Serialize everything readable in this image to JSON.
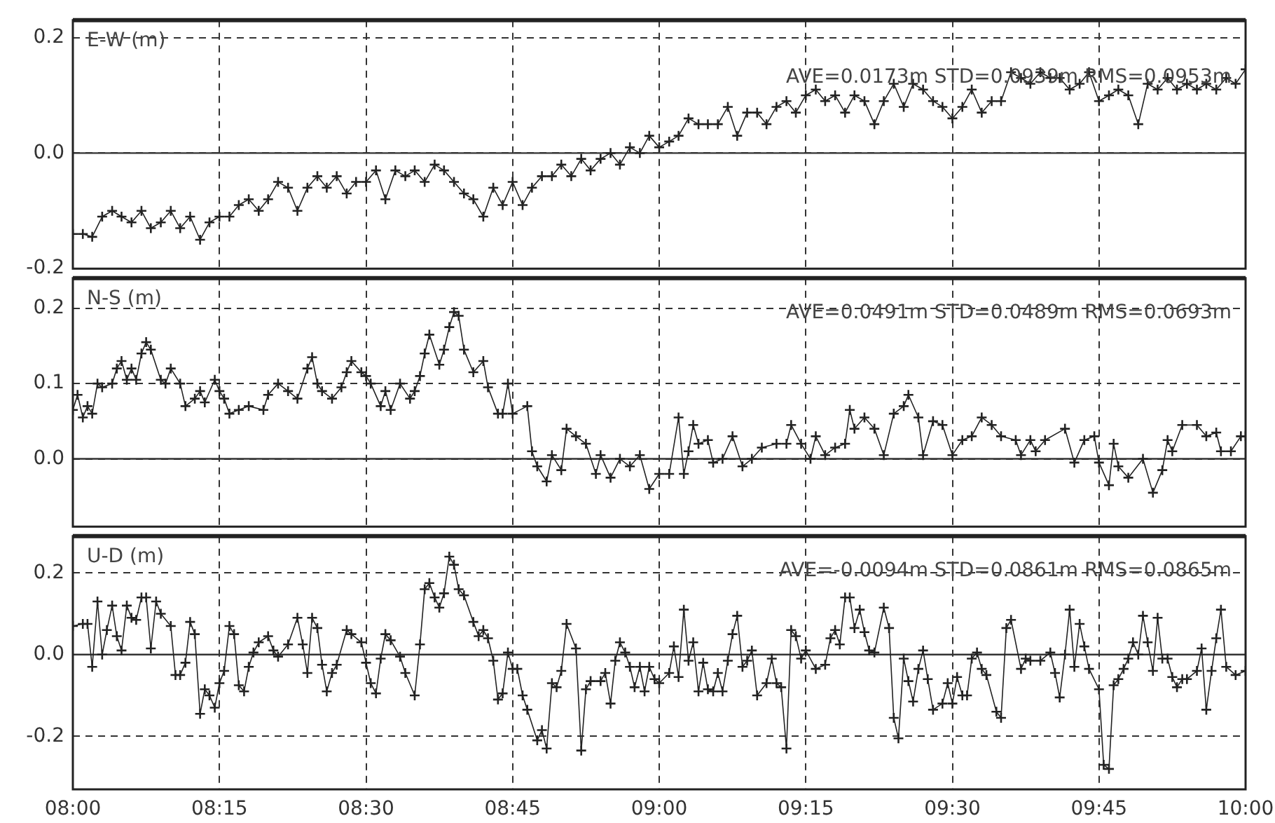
{
  "chart_data": [
    {
      "type": "line",
      "title": "E-W (m)",
      "annotations": [
        "AVE=0.0173m STD=0.0939m RMS=0.0953m"
      ],
      "marker": "cross",
      "grid": true,
      "tick_labels": "y",
      "xlim": [
        8,
        10
      ],
      "xticks": [
        {
          "value": 8,
          "label": null
        },
        {
          "value": 8.25,
          "label": null
        },
        {
          "value": 8.5,
          "label": null
        },
        {
          "value": 8.75,
          "label": null
        },
        {
          "value": 9,
          "label": null
        },
        {
          "value": 9.25,
          "label": null
        },
        {
          "value": 9.5,
          "label": null
        },
        {
          "value": 9.75,
          "label": null
        },
        {
          "value": 10,
          "label": null
        }
      ],
      "ylim": [
        -0.2,
        0.23
      ],
      "yticks": [
        {
          "value": -0.2,
          "label": "-0.2"
        },
        {
          "value": 0,
          "label": "0.0"
        },
        {
          "value": 0.2,
          "label": "0.2"
        }
      ],
      "ref_lines": [
        {
          "axis": "y",
          "value": 0,
          "color": "#333333",
          "line_style": "solid"
        }
      ],
      "series": [
        {
          "color": "#222222",
          "x": [
            8,
            8.017,
            8.033,
            8.05,
            8.067,
            8.083,
            8.1,
            8.117,
            8.133,
            8.15,
            8.167,
            8.183,
            8.2,
            8.217,
            8.233,
            8.25,
            8.267,
            8.283,
            8.3,
            8.317,
            8.333,
            8.35,
            8.367,
            8.383,
            8.4,
            8.417,
            8.433,
            8.45,
            8.467,
            8.483,
            8.5,
            8.517,
            8.533,
            8.55,
            8.567,
            8.583,
            8.6,
            8.617,
            8.633,
            8.65,
            8.667,
            8.683,
            8.7,
            8.717,
            8.733,
            8.75,
            8.767,
            8.783,
            8.8,
            8.817,
            8.833,
            8.85,
            8.867,
            8.883,
            8.9,
            8.917,
            8.933,
            8.95,
            8.967,
            8.983,
            9,
            9.017,
            9.033,
            9.05,
            9.067,
            9.083,
            9.1,
            9.117,
            9.133,
            9.15,
            9.167,
            9.183,
            9.2,
            9.217,
            9.233,
            9.25,
            9.267,
            9.283,
            9.3,
            9.317,
            9.333,
            9.35,
            9.367,
            9.383,
            9.4,
            9.417,
            9.433,
            9.45,
            9.467,
            9.483,
            9.5,
            9.517,
            9.533,
            9.55,
            9.567,
            9.583,
            9.6,
            9.617,
            9.633,
            9.65,
            9.667,
            9.683,
            9.7,
            9.717,
            9.733,
            9.75,
            9.767,
            9.783,
            9.8,
            9.817,
            9.833,
            9.85,
            9.867,
            9.883,
            9.9,
            9.917,
            9.933,
            9.95,
            9.967,
            9.983,
            10
          ],
          "values": [
            -0.14,
            -0.14,
            -0.145,
            -0.11,
            -0.1,
            -0.11,
            -0.12,
            -0.1,
            -0.13,
            -0.12,
            -0.1,
            -0.13,
            -0.11,
            -0.15,
            -0.12,
            -0.11,
            -0.11,
            -0.09,
            -0.08,
            -0.1,
            -0.08,
            -0.05,
            -0.06,
            -0.1,
            -0.06,
            -0.04,
            -0.06,
            -0.04,
            -0.07,
            -0.05,
            -0.05,
            -0.03,
            -0.08,
            -0.03,
            -0.04,
            -0.03,
            -0.05,
            -0.02,
            -0.03,
            -0.05,
            -0.07,
            -0.08,
            -0.11,
            -0.06,
            -0.09,
            -0.05,
            -0.09,
            -0.06,
            -0.04,
            -0.04,
            -0.02,
            -0.04,
            -0.01,
            -0.03,
            -0.01,
            0,
            -0.02,
            0.01,
            0,
            0.03,
            0.01,
            0.02,
            0.03,
            0.06,
            0.05,
            0.05,
            0.05,
            0.08,
            0.03,
            0.07,
            0.07,
            0.05,
            0.08,
            0.09,
            0.07,
            0.1,
            0.11,
            0.09,
            0.1,
            0.07,
            0.1,
            0.09,
            0.05,
            0.09,
            0.12,
            0.08,
            0.12,
            0.11,
            0.09,
            0.08,
            0.06,
            0.08,
            0.11,
            0.07,
            0.09,
            0.09,
            0.14,
            0.13,
            0.12,
            0.14,
            0.13,
            0.13,
            0.11,
            0.12,
            0.14,
            0.09,
            0.1,
            0.11,
            0.1,
            0.05,
            0.12,
            0.11,
            0.13,
            0.11,
            0.12,
            0.11,
            0.12,
            0.11,
            0.13,
            0.12,
            0.145
          ]
        }
      ]
    },
    {
      "type": "line",
      "title": "N-S (m)",
      "annotations": [
        "AVE=0.0491m STD=0.0489m RMS=0.0693m"
      ],
      "marker": "cross",
      "grid": true,
      "tick_labels": "y",
      "xlim": [
        8,
        10
      ],
      "xticks": [
        {
          "value": 8,
          "label": null
        },
        {
          "value": 8.25,
          "label": null
        },
        {
          "value": 8.5,
          "label": null
        },
        {
          "value": 8.75,
          "label": null
        },
        {
          "value": 9,
          "label": null
        },
        {
          "value": 9.25,
          "label": null
        },
        {
          "value": 9.5,
          "label": null
        },
        {
          "value": 9.75,
          "label": null
        },
        {
          "value": 10,
          "label": null
        }
      ],
      "ylim": [
        -0.09,
        0.24
      ],
      "yticks": [
        {
          "value": 0,
          "label": "0.0"
        },
        {
          "value": 0.1,
          "label": "0.1"
        },
        {
          "value": 0.2,
          "label": "0.2"
        }
      ],
      "ref_lines": [
        {
          "axis": "y",
          "value": 0,
          "color": "#333333",
          "line_style": "solid"
        }
      ],
      "series": [
        {
          "color": "#222222",
          "x": [
            8,
            8.008,
            8.017,
            8.025,
            8.033,
            8.042,
            8.05,
            8.067,
            8.075,
            8.083,
            8.092,
            8.1,
            8.108,
            8.117,
            8.125,
            8.133,
            8.15,
            8.158,
            8.167,
            8.183,
            8.192,
            8.208,
            8.217,
            8.225,
            8.242,
            8.25,
            8.258,
            8.267,
            8.283,
            8.3,
            8.325,
            8.333,
            8.35,
            8.367,
            8.383,
            8.4,
            8.408,
            8.417,
            8.425,
            8.442,
            8.458,
            8.467,
            8.475,
            8.492,
            8.5,
            8.508,
            8.525,
            8.533,
            8.542,
            8.558,
            8.575,
            8.583,
            8.592,
            8.6,
            8.608,
            8.625,
            8.633,
            8.642,
            8.65,
            8.658,
            8.667,
            8.683,
            8.7,
            8.708,
            8.725,
            8.733,
            8.742,
            8.75,
            8.775,
            8.783,
            8.792,
            8.808,
            8.817,
            8.833,
            8.842,
            8.858,
            8.875,
            8.892,
            8.9,
            8.917,
            8.933,
            8.95,
            8.967,
            8.983,
            9,
            9.017,
            9.033,
            9.042,
            9.05,
            9.058,
            9.067,
            9.083,
            9.092,
            9.108,
            9.125,
            9.142,
            9.158,
            9.175,
            9.2,
            9.217,
            9.225,
            9.242,
            9.258,
            9.267,
            9.283,
            9.3,
            9.317,
            9.325,
            9.333,
            9.35,
            9.367,
            9.383,
            9.4,
            9.417,
            9.425,
            9.442,
            9.45,
            9.467,
            9.483,
            9.5,
            9.517,
            9.533,
            9.55,
            9.567,
            9.583,
            9.608,
            9.617,
            9.633,
            9.642,
            9.658,
            9.692,
            9.708,
            9.725,
            9.742,
            9.75,
            9.767,
            9.775,
            9.783,
            9.8,
            9.825,
            9.842,
            9.858,
            9.867,
            9.875,
            9.892,
            9.917,
            9.933,
            9.95,
            9.958,
            9.975,
            9.992,
            10
          ],
          "values": [
            0.065,
            0.085,
            0.055,
            0.07,
            0.06,
            0.1,
            0.095,
            0.1,
            0.12,
            0.13,
            0.105,
            0.12,
            0.105,
            0.14,
            0.155,
            0.145,
            0.105,
            0.1,
            0.12,
            0.1,
            0.07,
            0.08,
            0.09,
            0.075,
            0.105,
            0.09,
            0.08,
            0.06,
            0.065,
            0.07,
            0.065,
            0.085,
            0.1,
            0.09,
            0.08,
            0.12,
            0.135,
            0.1,
            0.09,
            0.08,
            0.095,
            0.115,
            0.13,
            0.115,
            0.11,
            0.1,
            0.07,
            0.09,
            0.065,
            0.1,
            0.08,
            0.09,
            0.11,
            0.14,
            0.165,
            0.125,
            0.145,
            0.175,
            0.195,
            0.19,
            0.145,
            0.115,
            0.13,
            0.095,
            0.06,
            0.06,
            0.1,
            0.06,
            0.07,
            0.01,
            -0.01,
            -0.03,
            0.005,
            -0.015,
            0.04,
            0.03,
            0.02,
            -0.02,
            0.005,
            -0.025,
            0,
            -0.01,
            0.005,
            -0.04,
            -0.02,
            -0.02,
            0.055,
            -0.02,
            0.01,
            0.045,
            0.02,
            0.025,
            -0.005,
            0,
            0.03,
            -0.01,
            0,
            0.015,
            0.02,
            0.02,
            0.045,
            0.02,
            0,
            0.03,
            0.005,
            0.015,
            0.02,
            0.065,
            0.04,
            0.055,
            0.04,
            0.005,
            0.06,
            0.07,
            0.085,
            0.055,
            0.005,
            0.05,
            0.045,
            0.005,
            0.025,
            0.03,
            0.055,
            0.045,
            0.03,
            0.025,
            0.005,
            0.025,
            0.01,
            0.025,
            0.04,
            -0.005,
            0.025,
            0.03,
            -0.005,
            -0.035,
            0.02,
            -0.01,
            -0.025,
            0,
            -0.045,
            -0.015,
            0.025,
            0.01,
            0.045,
            0.045,
            0.03,
            0.035,
            0.01,
            0.01,
            0.03,
            0.03
          ]
        }
      ]
    },
    {
      "type": "line",
      "title": "U-D (m)",
      "annotations": [
        "AVE=-0.0094m STD=0.0861m RMS=0.0865m"
      ],
      "marker": "cross",
      "grid": true,
      "xlim": [
        8,
        10
      ],
      "xticks": [
        {
          "value": 8,
          "label": "08:00"
        },
        {
          "value": 8.25,
          "label": "08:15"
        },
        {
          "value": 8.5,
          "label": "08:30"
        },
        {
          "value": 8.75,
          "label": "08:45"
        },
        {
          "value": 9,
          "label": "09:00"
        },
        {
          "value": 9.25,
          "label": "09:15"
        },
        {
          "value": 9.5,
          "label": "09:30"
        },
        {
          "value": 9.75,
          "label": "09:45"
        },
        {
          "value": 10,
          "label": "10:00"
        }
      ],
      "ylim": [
        -0.33,
        0.29
      ],
      "yticks": [
        {
          "value": -0.2,
          "label": "-0.2"
        },
        {
          "value": 0,
          "label": "0.0"
        },
        {
          "value": 0.2,
          "label": "0.2"
        }
      ],
      "ref_lines": [
        {
          "axis": "y",
          "value": 0,
          "color": "#333333",
          "line_style": "solid"
        }
      ],
      "series": [
        {
          "color": "#222222",
          "x": [
            8,
            8.017,
            8.025,
            8.033,
            8.042,
            8.05,
            8.058,
            8.067,
            8.075,
            8.083,
            8.092,
            8.1,
            8.108,
            8.117,
            8.125,
            8.133,
            8.142,
            8.15,
            8.167,
            8.175,
            8.183,
            8.192,
            8.2,
            8.208,
            8.217,
            8.225,
            8.233,
            8.242,
            8.25,
            8.258,
            8.267,
            8.275,
            8.283,
            8.292,
            8.3,
            8.308,
            8.317,
            8.333,
            8.342,
            8.35,
            8.367,
            8.383,
            8.392,
            8.4,
            8.408,
            8.417,
            8.425,
            8.433,
            8.442,
            8.45,
            8.467,
            8.475,
            8.492,
            8.5,
            8.508,
            8.517,
            8.525,
            8.533,
            8.542,
            8.558,
            8.567,
            8.583,
            8.592,
            8.6,
            8.608,
            8.617,
            8.625,
            8.633,
            8.642,
            8.65,
            8.658,
            8.667,
            8.683,
            8.692,
            8.7,
            8.708,
            8.717,
            8.725,
            8.733,
            8.742,
            8.75,
            8.758,
            8.767,
            8.775,
            8.792,
            8.8,
            8.808,
            8.817,
            8.825,
            8.833,
            8.842,
            8.858,
            8.867,
            8.875,
            8.883,
            8.9,
            8.908,
            8.917,
            8.925,
            8.933,
            8.942,
            8.95,
            8.958,
            8.967,
            8.975,
            8.983,
            8.992,
            9,
            9.017,
            9.025,
            9.033,
            9.042,
            9.05,
            9.058,
            9.067,
            9.075,
            9.083,
            9.092,
            9.1,
            9.108,
            9.117,
            9.125,
            9.133,
            9.142,
            9.15,
            9.158,
            9.167,
            9.183,
            9.192,
            9.2,
            9.208,
            9.217,
            9.225,
            9.233,
            9.242,
            9.25,
            9.267,
            9.283,
            9.292,
            9.3,
            9.308,
            9.317,
            9.325,
            9.333,
            9.342,
            9.35,
            9.358,
            9.367,
            9.383,
            9.392,
            9.4,
            9.408,
            9.417,
            9.425,
            9.433,
            9.442,
            9.45,
            9.458,
            9.467,
            9.483,
            9.492,
            9.5,
            9.508,
            9.517,
            9.525,
            9.533,
            9.542,
            9.55,
            9.558,
            9.575,
            9.583,
            9.592,
            9.6,
            9.617,
            9.625,
            9.633,
            9.65,
            9.667,
            9.675,
            9.683,
            9.692,
            9.7,
            9.708,
            9.717,
            9.725,
            9.733,
            9.75,
            9.758,
            9.767,
            9.775,
            9.783,
            9.792,
            9.8,
            9.808,
            9.817,
            9.825,
            9.833,
            9.842,
            9.85,
            9.858,
            9.867,
            9.875,
            9.883,
            9.892,
            9.9,
            9.917,
            9.925,
            9.933,
            9.942,
            9.95,
            9.958,
            9.967,
            9.983,
            10
          ],
          "values": [
            0.07,
            0.075,
            0.075,
            -0.03,
            0.13,
            0,
            0.06,
            0.12,
            0.045,
            0.01,
            0.12,
            0.09,
            0.085,
            0.14,
            0.14,
            0.015,
            0.13,
            0.1,
            0.07,
            -0.05,
            -0.05,
            -0.02,
            0.08,
            0.05,
            -0.145,
            -0.085,
            -0.1,
            -0.13,
            -0.07,
            -0.04,
            0.07,
            0.05,
            -0.075,
            -0.09,
            -0.03,
            0.005,
            0.03,
            0.045,
            0.01,
            -0.005,
            0.025,
            0.09,
            0.025,
            -0.045,
            0.09,
            0.065,
            -0.025,
            -0.09,
            -0.045,
            -0.025,
            0.06,
            0.05,
            0.03,
            -0.02,
            -0.07,
            -0.095,
            -0.01,
            0.05,
            0.035,
            -0.005,
            -0.045,
            -0.1,
            0.025,
            0.16,
            0.175,
            0.14,
            0.115,
            0.15,
            0.24,
            0.22,
            0.16,
            0.145,
            0.08,
            0.045,
            0.06,
            0.04,
            -0.015,
            -0.11,
            -0.095,
            0.005,
            -0.035,
            -0.035,
            -0.1,
            -0.135,
            -0.21,
            -0.185,
            -0.23,
            -0.07,
            -0.08,
            -0.04,
            0.075,
            0.015,
            -0.235,
            -0.085,
            -0.065,
            -0.065,
            -0.045,
            -0.12,
            -0.015,
            0.03,
            0.005,
            -0.03,
            -0.08,
            -0.03,
            -0.09,
            -0.03,
            -0.06,
            -0.07,
            -0.045,
            0.02,
            -0.055,
            0.11,
            -0.015,
            0.03,
            -0.09,
            -0.02,
            -0.085,
            -0.09,
            -0.045,
            -0.09,
            -0.015,
            0.05,
            0.095,
            -0.03,
            -0.015,
            0.01,
            -0.1,
            -0.07,
            -0.01,
            -0.07,
            -0.08,
            -0.23,
            0.06,
            0.045,
            -0.01,
            0.01,
            -0.035,
            -0.025,
            0.04,
            0.06,
            0.025,
            0.14,
            0.14,
            0.065,
            0.11,
            0.055,
            0.01,
            0.005,
            0.115,
            0.065,
            -0.155,
            -0.205,
            -0.01,
            -0.065,
            -0.115,
            -0.035,
            0.01,
            -0.06,
            -0.135,
            -0.12,
            -0.07,
            -0.12,
            -0.055,
            -0.1,
            -0.1,
            -0.01,
            0.005,
            -0.035,
            -0.05,
            -0.14,
            -0.155,
            0.065,
            0.085,
            -0.035,
            -0.01,
            -0.015,
            -0.015,
            0.005,
            -0.045,
            -0.105,
            0,
            0.11,
            -0.03,
            0.075,
            0.02,
            -0.035,
            -0.085,
            -0.27,
            -0.28,
            -0.075,
            -0.06,
            -0.035,
            -0.01,
            0.03,
            0,
            0.095,
            0.03,
            -0.04,
            0.09,
            -0.01,
            -0.01,
            -0.055,
            -0.08,
            -0.06,
            -0.06,
            -0.04,
            0.015,
            -0.135,
            -0.04,
            0.04,
            0.11,
            -0.03,
            -0.05,
            -0.04
          ]
        }
      ]
    }
  ]
}
